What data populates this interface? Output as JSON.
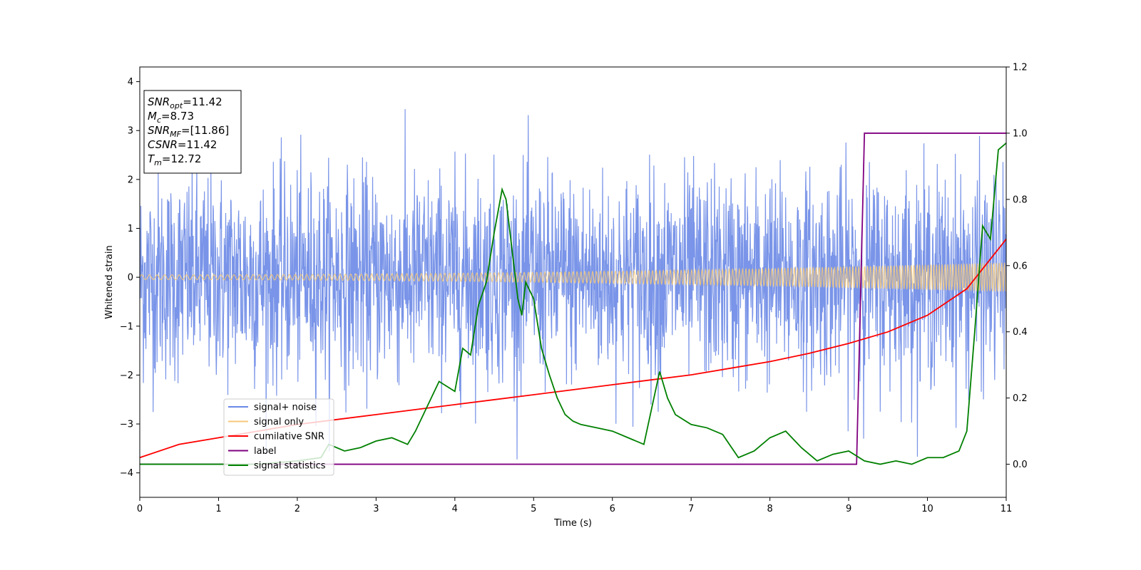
{
  "chart_data": {
    "type": "line",
    "xlabel": "Time (s)",
    "ylabel": "Whitened strain",
    "xlim": [
      0,
      11
    ],
    "ylim": [
      -4.5,
      4.3
    ],
    "ylim_right": [
      -0.1,
      1.2
    ],
    "xticks": [
      "0",
      "1",
      "2",
      "3",
      "4",
      "5",
      "6",
      "7",
      "8",
      "9",
      "10",
      "11"
    ],
    "yticks": [
      "−4",
      "−3",
      "−2",
      "−1",
      "0",
      "1",
      "2",
      "3",
      "4"
    ],
    "yticks_right": [
      "0.0",
      "0.2",
      "0.4",
      "0.6",
      "0.8",
      "1.0",
      "1.2"
    ],
    "grid": false,
    "legend_position": "lower-left",
    "colors": {
      "noise": "#6a88e6",
      "signal": "#f5c97a",
      "csnr": "#ff0000",
      "label": "#800080",
      "stats": "#008000"
    },
    "series": [
      {
        "name": "signal+ noise",
        "axis": "left",
        "kind": "noise",
        "envelope_typical": 1.5,
        "envelope_peak": 3.5
      },
      {
        "name": "signal only",
        "axis": "left",
        "kind": "chirp",
        "amplitude_start": 0.05,
        "amplitude_end": 0.3
      },
      {
        "name": "cumilative SNR",
        "axis": "right",
        "x": [
          0,
          0.5,
          1,
          1.5,
          2,
          2.5,
          3,
          3.5,
          4,
          4.5,
          5,
          5.5,
          6,
          6.5,
          7,
          7.5,
          8,
          8.5,
          9,
          9.5,
          10,
          10.5,
          11
        ],
        "y": [
          0.02,
          0.06,
          0.08,
          0.1,
          0.12,
          0.135,
          0.15,
          0.165,
          0.18,
          0.195,
          0.21,
          0.225,
          0.24,
          0.255,
          0.27,
          0.29,
          0.31,
          0.335,
          0.365,
          0.4,
          0.45,
          0.53,
          0.68
        ]
      },
      {
        "name": "label",
        "axis": "right",
        "x": [
          0,
          9.1,
          9.2,
          11
        ],
        "y": [
          0,
          0,
          1,
          1
        ]
      },
      {
        "name": "signal statistics",
        "axis": "right",
        "x": [
          0,
          0.5,
          1,
          1.5,
          2,
          2.3,
          2.4,
          2.6,
          2.8,
          3,
          3.2,
          3.4,
          3.5,
          3.6,
          3.8,
          4,
          4.1,
          4.2,
          4.3,
          4.4,
          4.5,
          4.6,
          4.65,
          4.7,
          4.8,
          4.85,
          4.9,
          5,
          5.1,
          5.2,
          5.3,
          5.4,
          5.5,
          5.6,
          5.8,
          6,
          6.2,
          6.4,
          6.6,
          6.7,
          6.8,
          7,
          7.2,
          7.4,
          7.6,
          7.8,
          8,
          8.2,
          8.4,
          8.6,
          8.8,
          9,
          9.2,
          9.4,
          9.6,
          9.8,
          10,
          10.2,
          10.4,
          10.5,
          10.6,
          10.7,
          10.8,
          10.9,
          11
        ],
        "y": [
          0.0,
          0.0,
          0.0,
          0.0,
          0.01,
          0.02,
          0.06,
          0.04,
          0.05,
          0.07,
          0.08,
          0.06,
          0.1,
          0.15,
          0.25,
          0.22,
          0.35,
          0.33,
          0.48,
          0.55,
          0.7,
          0.83,
          0.8,
          0.7,
          0.5,
          0.45,
          0.55,
          0.5,
          0.35,
          0.27,
          0.2,
          0.15,
          0.13,
          0.12,
          0.11,
          0.1,
          0.08,
          0.06,
          0.28,
          0.2,
          0.15,
          0.12,
          0.11,
          0.09,
          0.02,
          0.04,
          0.08,
          0.1,
          0.05,
          0.01,
          0.03,
          0.04,
          0.01,
          0.0,
          0.01,
          0.0,
          0.02,
          0.02,
          0.04,
          0.1,
          0.4,
          0.72,
          0.68,
          0.95,
          0.97
        ]
      }
    ],
    "annotation": [
      {
        "base": "SNR",
        "sub": "opt",
        "rest": "=11.42"
      },
      {
        "base": "M",
        "sub": "c",
        "rest": "=8.73"
      },
      {
        "base": "SNR",
        "sub": "MF",
        "rest": "=[11.86]"
      },
      {
        "base": "CSNR",
        "sub": "",
        "rest": "=11.42"
      },
      {
        "base": "T",
        "sub": "m",
        "rest": "=12.72"
      }
    ]
  }
}
